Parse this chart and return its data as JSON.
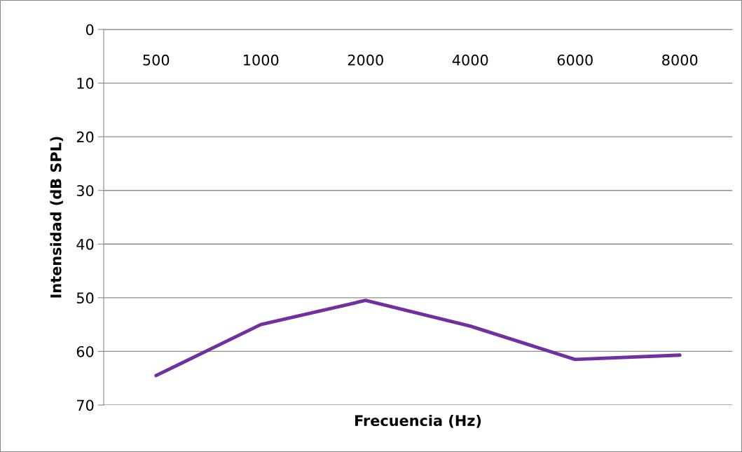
{
  "chart_data": {
    "type": "line",
    "xlabel": "Frecuencia (Hz)",
    "ylabel": "Intensidad (dB SPL)",
    "categories": [
      "500",
      "1000",
      "2000",
      "4000",
      "6000",
      "8000"
    ],
    "series": [
      {
        "color": "#7030a0",
        "values": [
          64.5,
          55.0,
          50.5,
          55.3,
          61.5,
          60.7
        ]
      }
    ],
    "ylim": [
      70,
      0
    ],
    "yticks": [
      0,
      10,
      20,
      30,
      40,
      50,
      60,
      70
    ],
    "grid": "y",
    "marker": "none",
    "line_style": "solid"
  }
}
